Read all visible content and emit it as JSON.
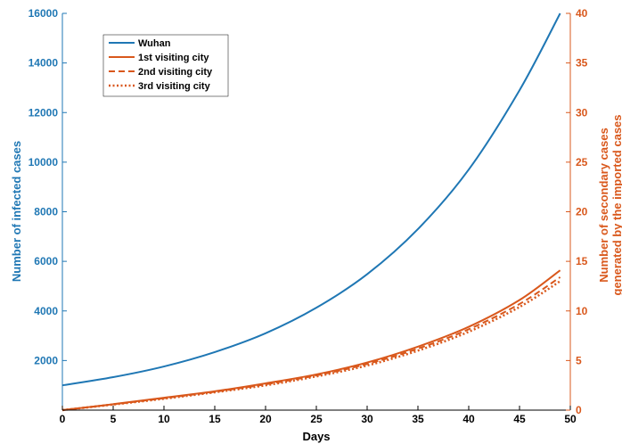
{
  "colors": {
    "left_axis": "#1f77b4",
    "right_axis": "#d9581c",
    "wuhan": "#1f77b4",
    "cities": "#d9581c"
  },
  "chart_data": {
    "type": "line",
    "xlabel": "Days",
    "ylabel_left": "Number of infected cases",
    "ylabel_right_line1": "Number of secondary cases",
    "ylabel_right_line2": "generated by the imported cases",
    "xlim": [
      0,
      50
    ],
    "ylim_left": [
      0,
      16000
    ],
    "ylim_right": [
      0,
      40
    ],
    "x_ticks": [
      "0",
      "5",
      "10",
      "15",
      "20",
      "25",
      "30",
      "35",
      "40",
      "45",
      "50"
    ],
    "y_left_ticks": [
      "2000",
      "4000",
      "6000",
      "8000",
      "10000",
      "12000",
      "14000",
      "16000"
    ],
    "y_right_ticks": [
      "0",
      "5",
      "10",
      "15",
      "20",
      "25",
      "30",
      "35",
      "40"
    ],
    "legend_position": "top-left",
    "series": [
      {
        "name": "Wuhan",
        "axis": "left",
        "style": "solid",
        "x": [
          0,
          5,
          10,
          15,
          20,
          25,
          30,
          35,
          40,
          45,
          49
        ],
        "values": [
          1000,
          1330,
          1760,
          2340,
          3100,
          4130,
          5480,
          7300,
          9700,
          12900,
          16000
        ]
      },
      {
        "name": "1st visiting city",
        "axis": "right",
        "style": "solid",
        "x": [
          0,
          5,
          10,
          15,
          20,
          25,
          30,
          35,
          40,
          45,
          49
        ],
        "values": [
          0,
          0.6,
          1.25,
          1.9,
          2.7,
          3.6,
          4.8,
          6.4,
          8.4,
          11.1,
          14.1
        ]
      },
      {
        "name": "2nd visiting city",
        "axis": "right",
        "style": "dashed",
        "x": [
          0,
          5,
          10,
          15,
          20,
          25,
          30,
          35,
          40,
          45,
          49
        ],
        "values": [
          0,
          0.58,
          1.2,
          1.85,
          2.6,
          3.5,
          4.65,
          6.2,
          8.15,
          10.7,
          13.4
        ]
      },
      {
        "name": "3rd visiting city",
        "axis": "right",
        "style": "dotted",
        "x": [
          0,
          5,
          10,
          15,
          20,
          25,
          30,
          35,
          40,
          45,
          49
        ],
        "values": [
          0,
          0.56,
          1.15,
          1.8,
          2.5,
          3.4,
          4.5,
          6.0,
          7.9,
          10.4,
          13.0
        ]
      }
    ]
  }
}
